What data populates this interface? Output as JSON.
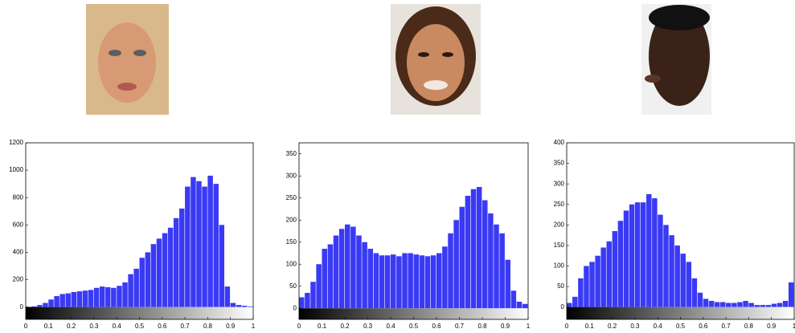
{
  "chart_data": [
    {
      "type": "histogram",
      "color": "#3a3af5",
      "bins": [
        0,
        0.025,
        0.05,
        0.075,
        0.1,
        0.125,
        0.15,
        0.175,
        0.2,
        0.225,
        0.25,
        0.275,
        0.3,
        0.325,
        0.35,
        0.375,
        0.4,
        0.425,
        0.45,
        0.475,
        0.5,
        0.525,
        0.55,
        0.575,
        0.6,
        0.625,
        0.65,
        0.675,
        0.7,
        0.725,
        0.75,
        0.775,
        0.8,
        0.825,
        0.85,
        0.875,
        0.9,
        0.925,
        0.95,
        0.975,
        1
      ],
      "values": [
        2,
        5,
        15,
        30,
        55,
        80,
        95,
        100,
        110,
        115,
        120,
        125,
        140,
        150,
        145,
        140,
        155,
        180,
        240,
        280,
        360,
        400,
        460,
        500,
        540,
        580,
        650,
        720,
        880,
        950,
        920,
        880,
        960,
        900,
        600,
        150,
        30,
        15,
        10,
        5
      ],
      "xlim": [
        0,
        1
      ],
      "xticks": [
        0,
        0.1,
        0.2,
        0.3,
        0.4,
        0.5,
        0.6,
        0.7,
        0.8,
        0.9,
        1
      ],
      "ylim": [
        -90,
        1200
      ],
      "yticks": [
        0,
        200,
        400,
        600,
        800,
        1000,
        1200
      ]
    },
    {
      "type": "histogram",
      "color": "#3a3af5",
      "bins": [
        0,
        0.025,
        0.05,
        0.075,
        0.1,
        0.125,
        0.15,
        0.175,
        0.2,
        0.225,
        0.25,
        0.275,
        0.3,
        0.325,
        0.35,
        0.375,
        0.4,
        0.425,
        0.45,
        0.475,
        0.5,
        0.525,
        0.55,
        0.575,
        0.6,
        0.625,
        0.65,
        0.675,
        0.7,
        0.725,
        0.75,
        0.775,
        0.8,
        0.825,
        0.85,
        0.875,
        0.9,
        0.925,
        0.95,
        0.975,
        1
      ],
      "values": [
        25,
        35,
        60,
        100,
        135,
        145,
        165,
        180,
        190,
        185,
        165,
        150,
        135,
        125,
        120,
        120,
        122,
        118,
        125,
        125,
        122,
        120,
        118,
        120,
        125,
        140,
        170,
        200,
        230,
        255,
        270,
        275,
        245,
        215,
        190,
        170,
        110,
        40,
        15,
        10
      ],
      "xlim": [
        0,
        1
      ],
      "xticks": [
        0,
        0.1,
        0.2,
        0.3,
        0.4,
        0.5,
        0.6,
        0.7,
        0.8,
        0.9,
        1
      ],
      "ylim": [
        -25,
        375
      ],
      "yticks": [
        0,
        50,
        100,
        150,
        200,
        250,
        300,
        350
      ]
    },
    {
      "type": "histogram",
      "color": "#3a3af5",
      "bins": [
        0,
        0.025,
        0.05,
        0.075,
        0.1,
        0.125,
        0.15,
        0.175,
        0.2,
        0.225,
        0.25,
        0.275,
        0.3,
        0.325,
        0.35,
        0.375,
        0.4,
        0.425,
        0.45,
        0.475,
        0.5,
        0.525,
        0.55,
        0.575,
        0.6,
        0.625,
        0.65,
        0.675,
        0.7,
        0.725,
        0.75,
        0.775,
        0.8,
        0.825,
        0.85,
        0.875,
        0.9,
        0.925,
        0.95,
        0.975,
        1
      ],
      "values": [
        10,
        25,
        70,
        100,
        110,
        125,
        145,
        160,
        185,
        210,
        235,
        250,
        255,
        255,
        275,
        265,
        225,
        200,
        175,
        150,
        130,
        110,
        70,
        35,
        20,
        15,
        12,
        12,
        10,
        10,
        12,
        15,
        10,
        5,
        5,
        5,
        8,
        10,
        15,
        60
      ],
      "xlim": [
        0,
        1
      ],
      "xticks": [
        0,
        0.1,
        0.2,
        0.3,
        0.4,
        0.5,
        0.6,
        0.7,
        0.8,
        0.9,
        1
      ],
      "ylim": [
        -30,
        400
      ],
      "yticks": [
        0,
        50,
        100,
        150,
        200,
        250,
        300,
        350,
        400
      ]
    }
  ]
}
